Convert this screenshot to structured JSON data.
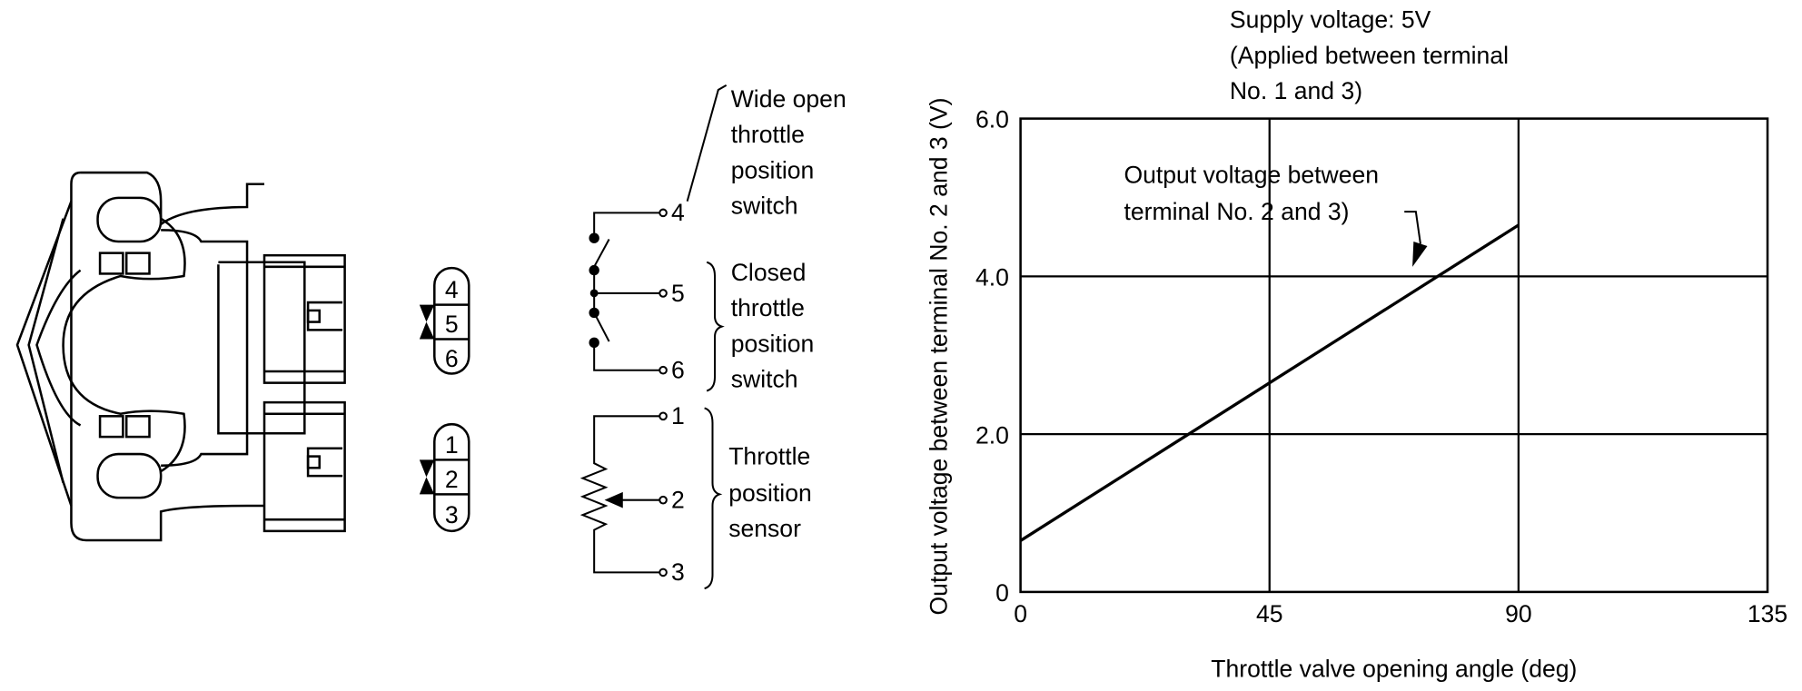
{
  "diagram": {
    "connector_upper_pins": [
      "4",
      "5",
      "6"
    ],
    "connector_lower_pins": [
      "1",
      "2",
      "3"
    ],
    "terminals": [
      "4",
      "5",
      "6",
      "1",
      "2",
      "3"
    ],
    "wide_open_switch_label": [
      "Wide open",
      "throttle",
      "position",
      "switch"
    ],
    "closed_switch_label": [
      "Closed",
      "throttle",
      "position",
      "switch"
    ],
    "sensor_label": [
      "Throttle",
      "position",
      "sensor"
    ]
  },
  "chart_data": {
    "type": "line",
    "title": "",
    "annotation_supply": [
      "Supply voltage: 5V",
      "(Applied between terminal",
      "No. 1 and 3)"
    ],
    "annotation_line": [
      "Output voltage between",
      "terminal No. 2 and 3)"
    ],
    "xlabel": "Throttle valve opening angle (deg)",
    "ylabel": "Output voltage between terminal No. 2 and 3 (V)",
    "xlim": [
      0,
      135
    ],
    "ylim": [
      0,
      6
    ],
    "xticks": [
      0,
      45,
      90,
      135
    ],
    "yticks": [
      0,
      2,
      4,
      6
    ],
    "xtick_labels": [
      "0",
      "45",
      "90",
      "135"
    ],
    "ytick_labels": [
      "0",
      "2.0",
      "4.0",
      "6.0"
    ],
    "grid": true,
    "series": [
      {
        "x": [
          0,
          90
        ],
        "y": [
          0.65,
          4.65
        ]
      }
    ]
  }
}
